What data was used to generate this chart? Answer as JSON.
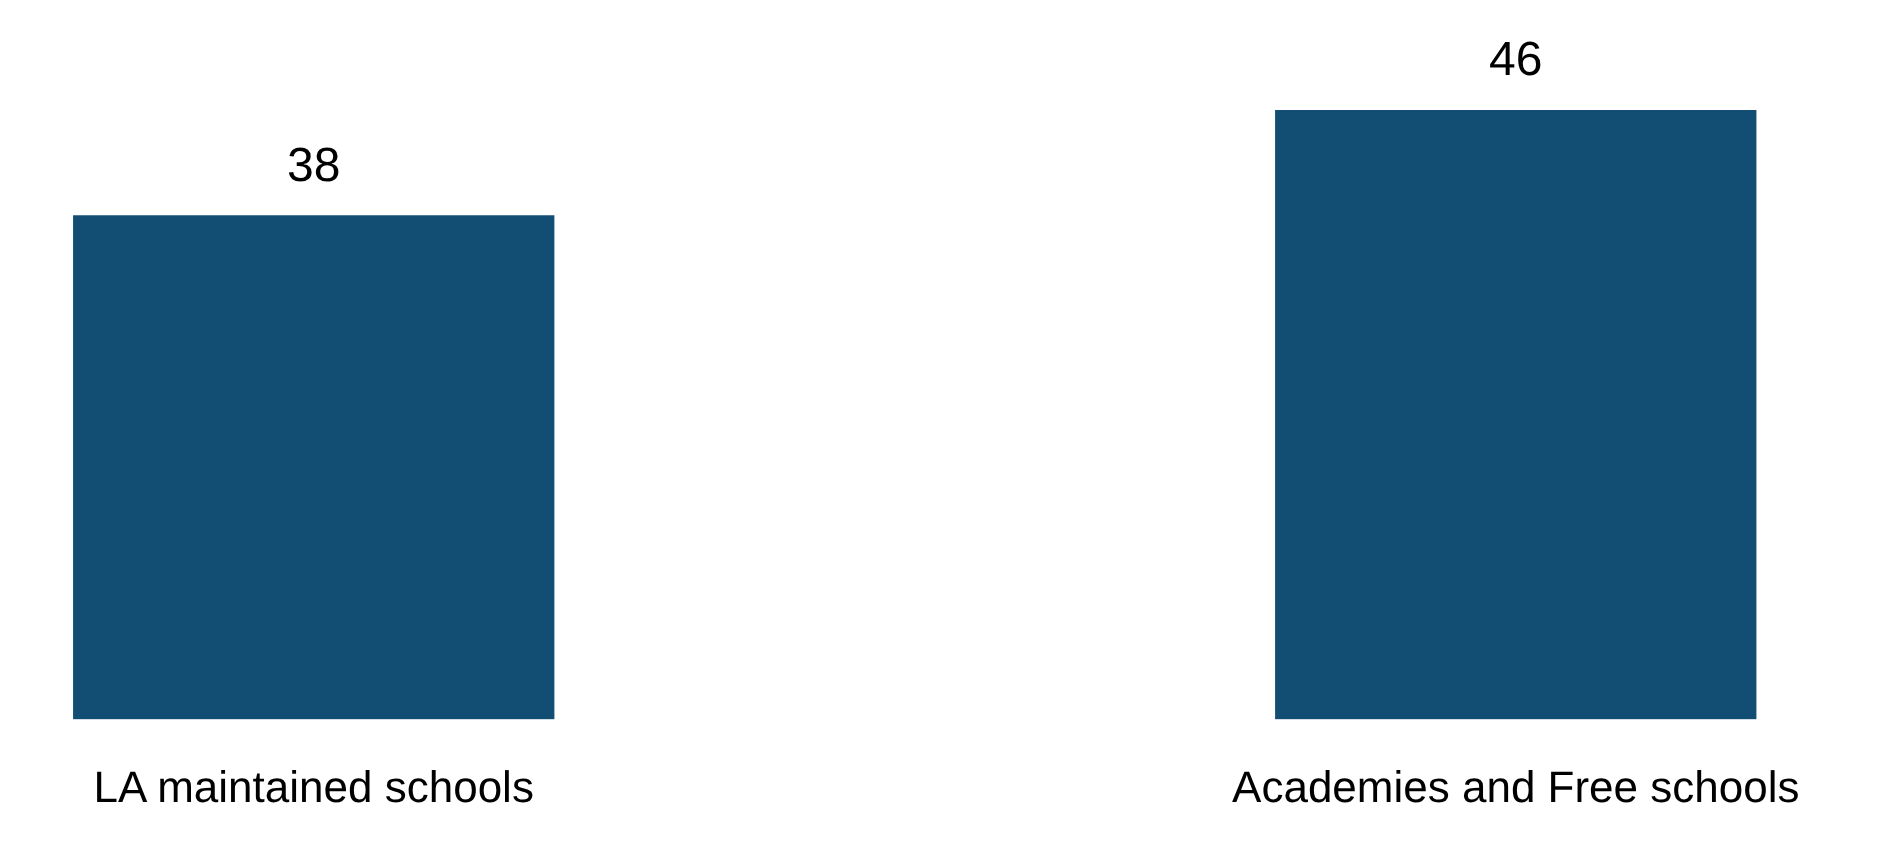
{
  "chart_data": {
    "type": "bar",
    "categories": [
      "LA maintained schools",
      "Academies and Free schools"
    ],
    "values": [
      38,
      46
    ],
    "color": "#124e73",
    "data_labels": true
  }
}
